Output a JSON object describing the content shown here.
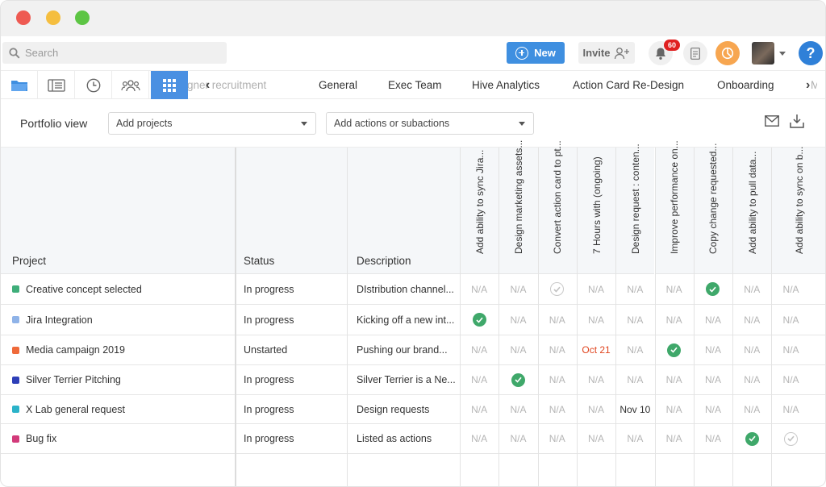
{
  "topbar": {
    "search_placeholder": "Search",
    "new_label": "New",
    "invite_label": "Invite",
    "notification_count": "60",
    "help_label": "?"
  },
  "tabs": {
    "projects": [
      {
        "label": "Designer recruitment",
        "faded": true
      },
      {
        "label": "General"
      },
      {
        "label": "Exec Team"
      },
      {
        "label": "Hive Analytics"
      },
      {
        "label": "Action Card Re-Design"
      },
      {
        "label": "Onboarding"
      },
      {
        "label": "Mobi"
      }
    ]
  },
  "controls": {
    "title": "Portfolio view",
    "add_projects": "Add projects",
    "add_actions": "Add actions or subactions"
  },
  "grid": {
    "headers": {
      "project": "Project",
      "status": "Status",
      "description": "Description"
    },
    "action_columns": [
      "Add ability to sync Jira...",
      "Design marketing assets...",
      "Convert action card to pt...",
      "7 Hours with (ongoing)",
      "Design request : conten...",
      "Improve performance on...",
      "Copy change requested...",
      "Add ability to pull data...",
      "Add ability to sync on b..."
    ],
    "rows": [
      {
        "project": "Creative concept selected",
        "color": "#3fae7a",
        "status": "In progress",
        "description": "DIstribution channel...",
        "cells": [
          "N/A",
          "N/A",
          "check-empty",
          "N/A",
          "N/A",
          "N/A",
          "check",
          "N/A",
          "N/A"
        ]
      },
      {
        "project": "Jira Integration",
        "color": "#8fb3e8",
        "status": "In progress",
        "description": "Kicking off a new int...",
        "cells": [
          "check",
          "N/A",
          "N/A",
          "N/A",
          "N/A",
          "N/A",
          "N/A",
          "N/A",
          "N/A"
        ]
      },
      {
        "project": "Media campaign 2019",
        "color": "#ef6a3a",
        "status": "Unstarted",
        "description": "Pushing our brand...",
        "cells": [
          "N/A",
          "N/A",
          "N/A",
          "Oct 21",
          "N/A",
          "check",
          "N/A",
          "N/A",
          "N/A"
        ]
      },
      {
        "project": "Silver Terrier Pitching",
        "color": "#2e3fb8",
        "status": "In progress",
        "description": "Silver Terrier is a Ne...",
        "cells": [
          "N/A",
          "check",
          "N/A",
          "N/A",
          "N/A",
          "N/A",
          "N/A",
          "N/A",
          "N/A"
        ]
      },
      {
        "project": "X Lab general request",
        "color": "#2bb3c9",
        "status": "In progress",
        "description": "Design requests",
        "cells": [
          "N/A",
          "N/A",
          "N/A",
          "N/A",
          "Nov 10",
          "N/A",
          "N/A",
          "N/A",
          "N/A"
        ]
      },
      {
        "project": "Bug fix",
        "color": "#d23a7a",
        "status": "In progress",
        "description": "Listed as actions",
        "cells": [
          "N/A",
          "N/A",
          "N/A",
          "N/A",
          "N/A",
          "N/A",
          "N/A",
          "check",
          "check-empty"
        ]
      }
    ]
  }
}
